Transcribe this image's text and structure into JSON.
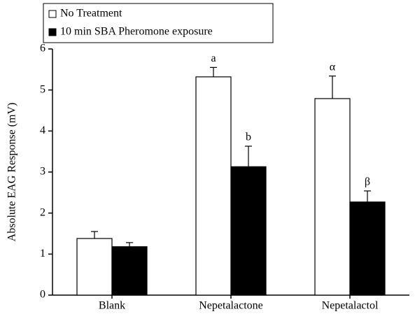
{
  "chart_data": {
    "type": "bar",
    "y_label": "Absolute EAG Response (mV)",
    "categories": [
      "Blank",
      "Nepetalactone",
      "Nepetalactol"
    ],
    "series": [
      {
        "name": "No Treatment",
        "color": "#ffffff",
        "values": [
          1.38,
          5.32,
          4.79
        ],
        "errors": [
          0.17,
          0.23,
          0.55
        ],
        "annotations": [
          null,
          "a",
          "α"
        ]
      },
      {
        "name": "10 min SBA Pheromone exposure",
        "color": "#000000",
        "values": [
          1.18,
          3.13,
          2.27
        ],
        "errors": [
          0.1,
          0.5,
          0.27
        ],
        "annotations": [
          null,
          "b",
          "β"
        ]
      }
    ],
    "ylim": [
      0,
      6
    ],
    "yticks": [
      0,
      1,
      2,
      3,
      4,
      5,
      6
    ],
    "legend": "top-left"
  }
}
